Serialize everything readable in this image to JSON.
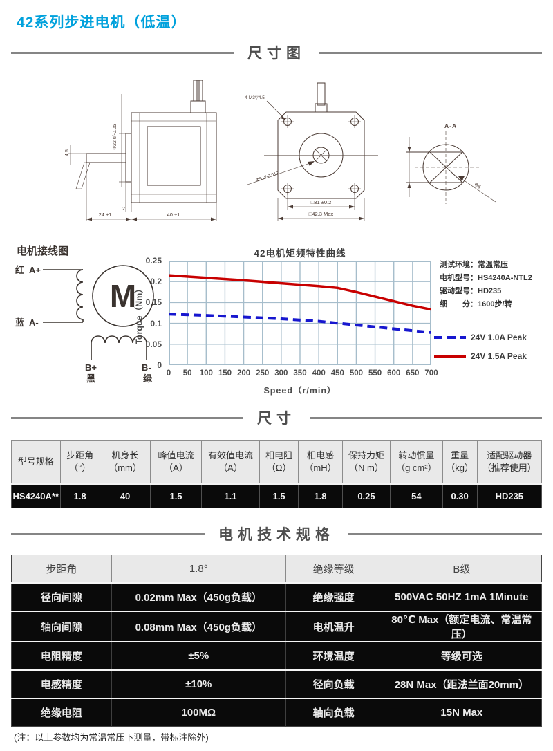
{
  "page": {
    "title": "42系列步进电机（低温）",
    "footnote": "(注：以上参数均为常温常压下测量，带标注除外)"
  },
  "sections": {
    "dim_diagram": "尺寸图",
    "dimensions": "尺寸",
    "motor_specs": "电机技术规格"
  },
  "wiring": {
    "heading": "电机接线图",
    "motor_symbol": "M",
    "wire_red": "红",
    "phase_a_plus": "A+",
    "wire_blue": "蓝",
    "phase_a_minus": "A-",
    "phase_b_plus": "B+",
    "wire_black": "黑",
    "phase_b_minus": "B-",
    "wire_green": "绿"
  },
  "drawings": {
    "side_view": {
      "flat_length": "4.5",
      "pilot_diameter": "Φ22 0/-0.05",
      "flange_thickness": "2",
      "shaft_length": "24 ±1",
      "body_length": "40 ±1"
    },
    "front_view": {
      "mounting_holes": "4-M3▽4.5",
      "shaft_diameter": "Φ5 0/-0.012",
      "hole_pitch": "□31 ±0.2",
      "flange_width": "□42.3 Max"
    },
    "section_view": {
      "label": "A-A",
      "shaft_diameter": "Φ5"
    }
  },
  "chart_info": {
    "test_env": "测试环境：常温常压",
    "motor_model": "电机型号：HS4240A-NTL2",
    "driver_model": "驱动型号：HD235",
    "subdivision": "细　　分：1600步/转"
  },
  "chart_data": {
    "type": "line",
    "title": "42电机矩频特性曲线",
    "xlabel": "Speed（r/min）",
    "ylabel": "Torque（Nm）",
    "xlim": [
      0,
      700
    ],
    "ylim": [
      0,
      0.25
    ],
    "xticks": [
      0,
      50,
      100,
      150,
      200,
      250,
      300,
      350,
      400,
      450,
      500,
      550,
      600,
      650,
      700
    ],
    "yticks": [
      0,
      0.05,
      0.1,
      0.15,
      0.2,
      0.25
    ],
    "grid": true,
    "grid_color": "#a6bdcb",
    "legend_position": "right",
    "series": [
      {
        "name": "24V 1.0A Peak",
        "color": "#1717cf",
        "style": "dashed",
        "x": [
          0,
          100,
          200,
          300,
          400,
          500,
          600,
          700
        ],
        "y": [
          0.122,
          0.119,
          0.115,
          0.111,
          0.105,
          0.096,
          0.087,
          0.078
        ]
      },
      {
        "name": "24V 1.5A Peak",
        "color": "#c80000",
        "style": "solid",
        "x": [
          0,
          100,
          200,
          300,
          400,
          450,
          500,
          550,
          600,
          650,
          700
        ],
        "y": [
          0.215,
          0.209,
          0.203,
          0.196,
          0.189,
          0.185,
          0.175,
          0.164,
          0.153,
          0.142,
          0.133
        ]
      }
    ]
  },
  "spec_table": {
    "headers": [
      "型号规格",
      "步距角\n（°）",
      "机身长\n（mm）",
      "峰值电流\n（A）",
      "有效值电流\n（A）",
      "相电阻\n（Ω）",
      "相电感\n（mH）",
      "保持力矩\n（N m）",
      "转动惯量\n（g cm²）",
      "重量\n（kg）",
      "适配驱动器\n（推荐使用）"
    ],
    "row": [
      "HS4240A**",
      "1.8",
      "40",
      "1.5",
      "1.1",
      "1.5",
      "1.8",
      "0.25",
      "54",
      "0.30",
      "HD235"
    ]
  },
  "tech_table": {
    "rows": [
      [
        "步距角",
        "1.8°",
        "绝缘等级",
        "B级"
      ],
      [
        "径向间隙",
        "0.02mm Max（450g负载）",
        "绝缘强度",
        "500VAC 50HZ 1mA 1Minute"
      ],
      [
        "轴向间隙",
        "0.08mm Max（450g负载）",
        "电机温升",
        "80℃ Max（额定电流、常温常压）"
      ],
      [
        "电阻精度",
        "±5%",
        "环境温度",
        "等级可选"
      ],
      [
        "电感精度",
        "±10%",
        "径向负载",
        "28N Max（距法兰面20mm）"
      ],
      [
        "绝缘电阻",
        "100MΩ",
        "轴向负载",
        "15N  Max"
      ]
    ]
  },
  "colors": {
    "title_blue": "#00a1dc",
    "divider_gray": "#858585",
    "chart_red": "#c80000",
    "chart_blue": "#1717cf",
    "chart_grid": "#a6bdcb",
    "table_dark_bg": "#0a0a0a",
    "table_header_bg": "#e9e9e9"
  }
}
